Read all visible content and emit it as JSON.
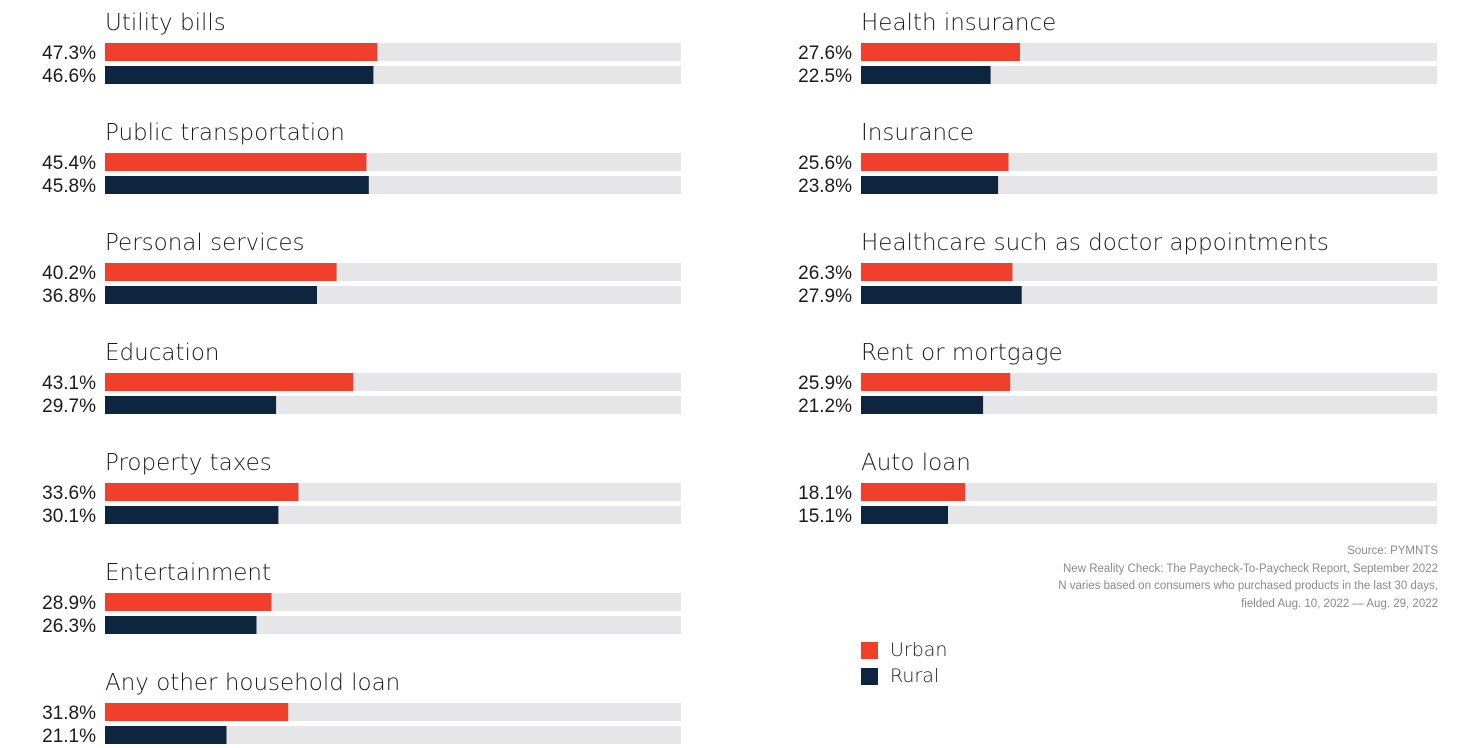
{
  "chart_data": {
    "type": "bar",
    "orientation": "horizontal",
    "xlim": [
      0,
      100
    ],
    "colors": {
      "urban": "#f0402b",
      "rural": "#0e2540",
      "track": "#e6e6e8"
    },
    "legend": {
      "placement": "bottom-right",
      "entries": [
        {
          "key": "urban",
          "label": "Urban"
        },
        {
          "key": "rural",
          "label": "Rural"
        }
      ]
    },
    "categories": [
      "Utility bills",
      "Public transportation",
      "Personal services",
      "Education",
      "Property taxes",
      "Entertainment",
      "Any other household loan",
      "Health insurance",
      "Insurance",
      "Healthcare such as doctor appointments",
      "Rent or mortgage",
      "Auto loan"
    ],
    "series": [
      {
        "name": "Urban",
        "color": "#f0402b",
        "values": [
          47.3,
          45.4,
          40.2,
          43.1,
          33.6,
          28.9,
          31.8,
          27.6,
          25.6,
          26.3,
          25.9,
          18.1
        ],
        "labels": [
          "47.3%",
          "45.4%",
          "40.2%",
          "43.1%",
          "33.6%",
          "28.9%",
          "31.8%",
          "27.6%",
          "25.6%",
          "26.3%",
          "25.9%",
          "18.1%"
        ]
      },
      {
        "name": "Rural",
        "color": "#0e2540",
        "values": [
          46.6,
          45.8,
          36.8,
          29.7,
          30.1,
          26.3,
          21.1,
          22.5,
          23.8,
          27.9,
          21.2,
          15.1
        ],
        "labels": [
          "46.6%",
          "45.8%",
          "36.8%",
          "29.7%",
          "30.1%",
          "26.3%",
          "21.1%",
          "22.5%",
          "23.8%",
          "27.9%",
          "21.2%",
          "15.1%"
        ]
      }
    ]
  },
  "source": {
    "line1": "Source: PYMNTS",
    "line2": "New Reality Check: The Paycheck-To-Paycheck Report, September 2022",
    "line3": "N varies based on consumers who purchased products in the last 30 days,",
    "line4": "fielded Aug. 10, 2022 — Aug. 29, 2022"
  }
}
